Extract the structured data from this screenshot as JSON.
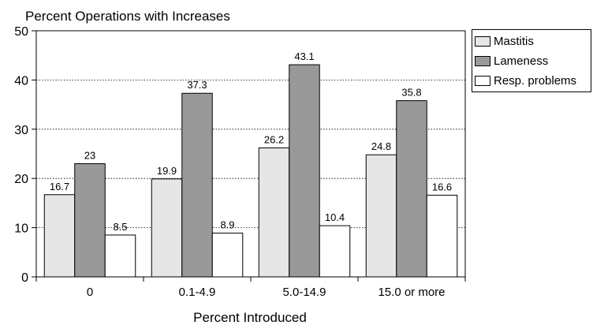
{
  "chart_data": {
    "type": "bar",
    "title": "Percent Operations with Increases",
    "xlabel": "Percent Introduced",
    "ylabel": "",
    "ylim": [
      0,
      50
    ],
    "yticks": [
      0,
      10,
      20,
      30,
      40,
      50
    ],
    "grid": true,
    "legend_position": "top-right",
    "categories": [
      "0",
      "0.1-4.9",
      "5.0-14.9",
      "15.0 or more"
    ],
    "series": [
      {
        "name": "Mastitis",
        "values": [
          16.7,
          19.9,
          26.2,
          24.8
        ],
        "color": "#e6e6e6",
        "labels": [
          "16.7",
          "19.9",
          "26.2",
          "24.8"
        ]
      },
      {
        "name": "Lameness",
        "values": [
          23,
          37.3,
          43.1,
          35.8
        ],
        "color": "#999999",
        "labels": [
          "23",
          "37.3",
          "43.1",
          "35.8"
        ]
      },
      {
        "name": "Resp. problems",
        "values": [
          8.5,
          8.9,
          10.4,
          16.6
        ],
        "color": "#ffffff",
        "labels": [
          "8.5",
          "8.9",
          "10.4",
          "16.6"
        ]
      }
    ]
  }
}
